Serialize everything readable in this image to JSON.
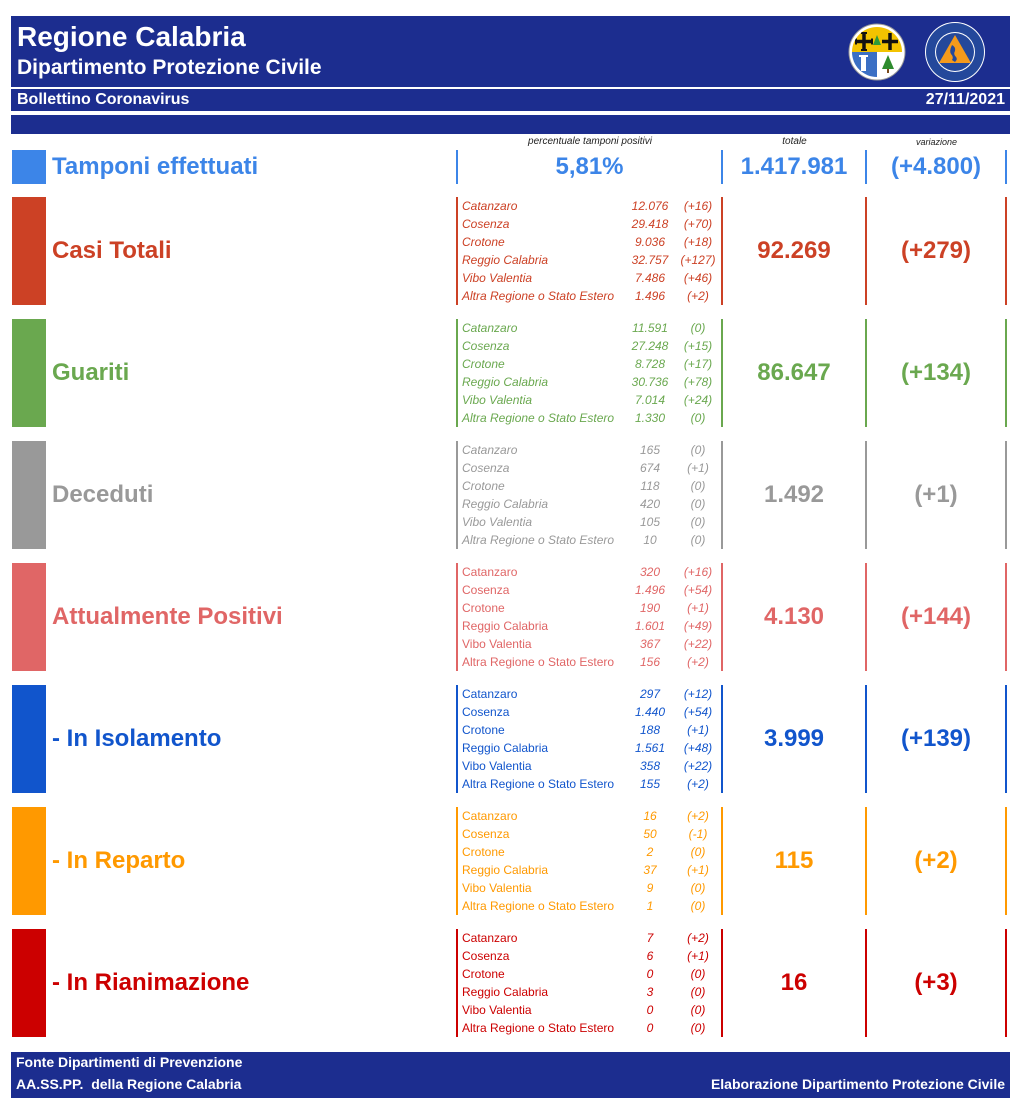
{
  "colors": {
    "header_blue": "#1c2d8f"
  },
  "header": {
    "title": "Regione Calabria",
    "subtitle": "Dipartimento Protezione Civile",
    "logos": [
      "calabria-coat-of-arms-icon",
      "protezione-civile-logo-icon"
    ]
  },
  "bulletin": {
    "label": "Bollettino Coronavirus",
    "date": "27/11/2021"
  },
  "columns": {
    "percent_label": "percentuale tamponi positivi",
    "total_label": "totale",
    "variation_label": "variazione"
  },
  "tamponi": {
    "label": "Tamponi effettuati",
    "percent_positive": "5,81%",
    "total": "1.417.981",
    "variation": "(+4.800)",
    "color": "#3c85e8"
  },
  "categories": [
    {
      "label": "Casi Totali",
      "color": "#cc4125",
      "total": "92.269",
      "variation": "(+279)",
      "provinces": [
        {
          "name": "Catanzaro",
          "value": "12.076",
          "variation": "(+16)"
        },
        {
          "name": "Cosenza",
          "value": "29.418",
          "variation": "(+70)"
        },
        {
          "name": "Crotone",
          "value": "9.036",
          "variation": "(+18)"
        },
        {
          "name": "Reggio Calabria",
          "value": "32.757",
          "variation": "(+127)"
        },
        {
          "name": "Vibo Valentia",
          "value": "7.486",
          "variation": "(+46)"
        },
        {
          "name": "Altra Regione o Stato Estero",
          "value": "1.496",
          "variation": "(+2)"
        }
      ]
    },
    {
      "label": "Guariti",
      "color": "#6aa84f",
      "total": "86.647",
      "variation": "(+134)",
      "provinces": [
        {
          "name": "Catanzaro",
          "value": "11.591",
          "variation": "(0)"
        },
        {
          "name": "Cosenza",
          "value": "27.248",
          "variation": "(+15)"
        },
        {
          "name": "Crotone",
          "value": "8.728",
          "variation": "(+17)"
        },
        {
          "name": "Reggio Calabria",
          "value": "30.736",
          "variation": "(+78)"
        },
        {
          "name": "Vibo Valentia",
          "value": "7.014",
          "variation": "(+24)"
        },
        {
          "name": "Altra Regione o Stato Estero",
          "value": "1.330",
          "variation": "(0)"
        }
      ]
    },
    {
      "label": "Deceduti",
      "color": "#999999",
      "total": "1.492",
      "variation": "(+1)",
      "provinces": [
        {
          "name": "Catanzaro",
          "value": "165",
          "variation": "(0)"
        },
        {
          "name": "Cosenza",
          "value": "674",
          "variation": "(+1)"
        },
        {
          "name": "Crotone",
          "value": "118",
          "variation": "(0)"
        },
        {
          "name": "Reggio Calabria",
          "value": "420",
          "variation": "(0)"
        },
        {
          "name": "Vibo Valentia",
          "value": "105",
          "variation": "(0)"
        },
        {
          "name": "Altra Regione o Stato Estero",
          "value": "10",
          "variation": "(0)"
        }
      ]
    },
    {
      "label": "Attualmente Positivi",
      "color": "#e06666",
      "total": "4.130",
      "variation": "(+144)",
      "provinces": [
        {
          "name": "Catanzaro",
          "value": "320",
          "variation": "(+16)"
        },
        {
          "name": "Cosenza",
          "value": "1.496",
          "variation": "(+54)"
        },
        {
          "name": "Crotone",
          "value": "190",
          "variation": "(+1)"
        },
        {
          "name": "Reggio Calabria",
          "value": "1.601",
          "variation": "(+49)"
        },
        {
          "name": "Vibo Valentia",
          "value": "367",
          "variation": "(+22)"
        },
        {
          "name": "Altra Regione o Stato Estero",
          "value": "156",
          "variation": "(+2)"
        }
      ]
    },
    {
      "label": "- In Isolamento",
      "color": "#1155cc",
      "total": "3.999",
      "variation": "(+139)",
      "provinces": [
        {
          "name": "Catanzaro",
          "value": "297",
          "variation": "(+12)"
        },
        {
          "name": "Cosenza",
          "value": "1.440",
          "variation": "(+54)"
        },
        {
          "name": "Crotone",
          "value": "188",
          "variation": "(+1)"
        },
        {
          "name": "Reggio Calabria",
          "value": "1.561",
          "variation": "(+48)"
        },
        {
          "name": "Vibo Valentia",
          "value": "358",
          "variation": "(+22)"
        },
        {
          "name": "Altra Regione o Stato Estero",
          "value": "155",
          "variation": "(+2)"
        }
      ]
    },
    {
      "label": "- In Reparto",
      "color": "#ff9900",
      "total": "115",
      "variation": "(+2)",
      "provinces": [
        {
          "name": "Catanzaro",
          "value": "16",
          "variation": "(+2)"
        },
        {
          "name": "Cosenza",
          "value": "50",
          "variation": "(-1)"
        },
        {
          "name": "Crotone",
          "value": "2",
          "variation": "(0)"
        },
        {
          "name": "Reggio Calabria",
          "value": "37",
          "variation": "(+1)"
        },
        {
          "name": "Vibo Valentia",
          "value": "9",
          "variation": "(0)"
        },
        {
          "name": "Altra Regione o Stato Estero",
          "value": "1",
          "variation": "(0)"
        }
      ]
    },
    {
      "label": "- In Rianimazione",
      "color": "#cc0000",
      "total": "16",
      "variation": "(+3)",
      "provinces": [
        {
          "name": "Catanzaro",
          "value": "7",
          "variation": "(+2)"
        },
        {
          "name": "Cosenza",
          "value": "6",
          "variation": "(+1)"
        },
        {
          "name": "Crotone",
          "value": "0",
          "variation": "(0)"
        },
        {
          "name": "Reggio Calabria",
          "value": "3",
          "variation": "(0)"
        },
        {
          "name": "Vibo Valentia",
          "value": "0",
          "variation": "(0)"
        },
        {
          "name": "Altra Regione o Stato Estero",
          "value": "0",
          "variation": "(0)"
        }
      ]
    }
  ],
  "footer": {
    "source_line1": "Fonte Dipartimenti di Prevenzione",
    "source_line2": "AA.SS.PP.  della Regione Calabria",
    "credit": "Elaborazione Dipartimento Protezione Civile"
  }
}
